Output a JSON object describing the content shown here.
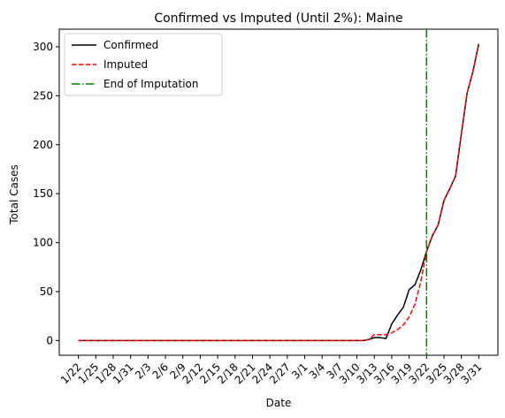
{
  "chart_data": {
    "type": "line",
    "title": "Confirmed vs Imputed (Until 2%): Maine",
    "xlabel": "Date",
    "ylabel": "Total Cases",
    "ylim": [
      -15,
      318
    ],
    "yticks": [
      0,
      50,
      100,
      150,
      200,
      250,
      300
    ],
    "x_ticks": [
      "1/22",
      "1/25",
      "1/28",
      "1/31",
      "2/3",
      "2/6",
      "2/9",
      "2/12",
      "2/15",
      "2/18",
      "2/21",
      "2/24",
      "2/27",
      "3/1",
      "3/4",
      "3/7",
      "3/10",
      "3/13",
      "3/16",
      "3/19",
      "3/22",
      "3/25",
      "3/28",
      "3/31"
    ],
    "legend_position": "upper-left",
    "grid": false,
    "vline": {
      "name": "End of Imputation",
      "x_index": 60,
      "color": "#008000"
    },
    "series": [
      {
        "name": "Confirmed",
        "color": "#000000",
        "style": "solid",
        "values": [
          0,
          0,
          0,
          0,
          0,
          0,
          0,
          0,
          0,
          0,
          0,
          0,
          0,
          0,
          0,
          0,
          0,
          0,
          0,
          0,
          0,
          0,
          0,
          0,
          0,
          0,
          0,
          0,
          0,
          0,
          0,
          0,
          0,
          0,
          0,
          0,
          0,
          0,
          0,
          0,
          0,
          0,
          0,
          0,
          0,
          0,
          0,
          0,
          0,
          0,
          1,
          3,
          3,
          2,
          17,
          26,
          34,
          52,
          57,
          72,
          91,
          107,
          118,
          143,
          155,
          168,
          211,
          253,
          275,
          303
        ]
      },
      {
        "name": "Imputed",
        "color": "#ff0000",
        "style": "dashed",
        "values": [
          0,
          0,
          0,
          0,
          0,
          0,
          0,
          0,
          0,
          0,
          0,
          0,
          0,
          0,
          0,
          0,
          0,
          0,
          0,
          0,
          0,
          0,
          0,
          0,
          0,
          0,
          0,
          0,
          0,
          0,
          0,
          0,
          0,
          0,
          0,
          0,
          0,
          0,
          0,
          0,
          0,
          0,
          0,
          0,
          0,
          0,
          0,
          0,
          0,
          0,
          1,
          6,
          6,
          6,
          8,
          11,
          16,
          24,
          37,
          60,
          91,
          107,
          118,
          143,
          155,
          168,
          211,
          253,
          275,
          303
        ]
      }
    ]
  }
}
